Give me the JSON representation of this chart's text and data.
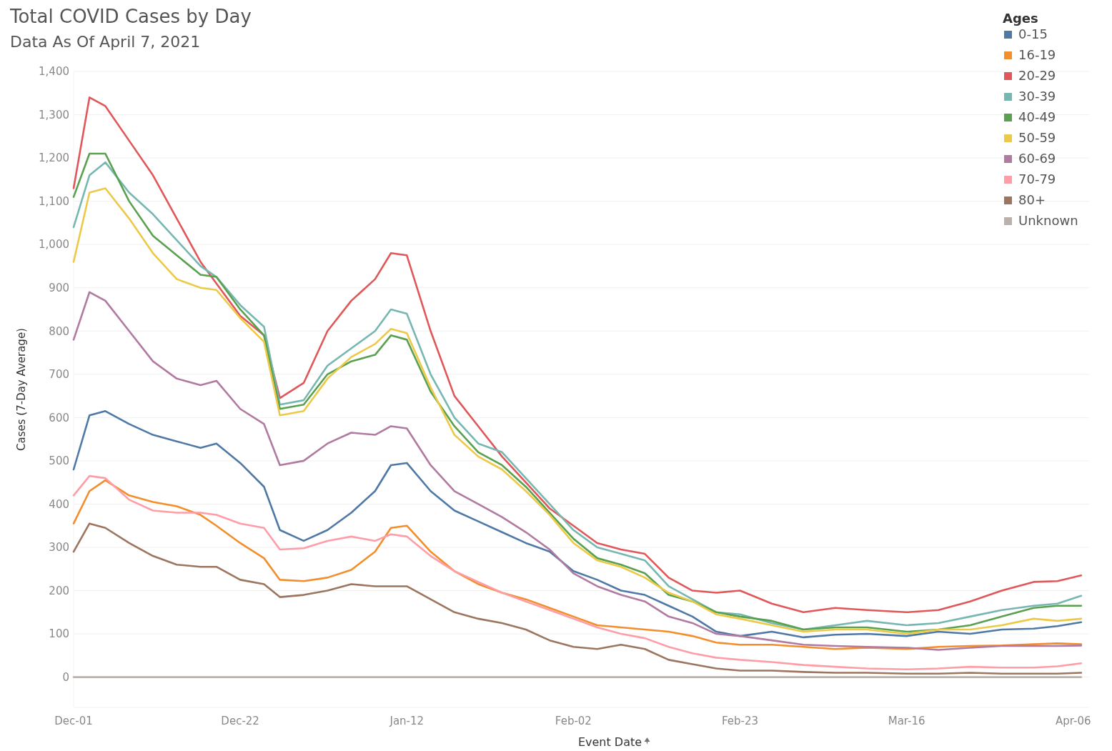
{
  "chart_data": {
    "type": "line",
    "title": "Total COVID Cases by Day",
    "subtitle": "Data As Of April 7, 2021",
    "xlabel": "Event Date",
    "ylabel": "Cases (7-Day Average)",
    "legend_title": "Ages",
    "legend": "top right",
    "grid": "y",
    "line_style": "solid",
    "marker": "none",
    "x": [
      "2020-12-01",
      "2020-12-03",
      "2020-12-05",
      "2020-12-08",
      "2020-12-11",
      "2020-12-14",
      "2020-12-17",
      "2020-12-19",
      "2020-12-22",
      "2020-12-25",
      "2020-12-27",
      "2020-12-30",
      "2021-01-02",
      "2021-01-05",
      "2021-01-08",
      "2021-01-10",
      "2021-01-12",
      "2021-01-15",
      "2021-01-18",
      "2021-01-21",
      "2021-01-24",
      "2021-01-27",
      "2021-01-30",
      "2021-02-02",
      "2021-02-05",
      "2021-02-08",
      "2021-02-11",
      "2021-02-14",
      "2021-02-17",
      "2021-02-20",
      "2021-02-23",
      "2021-02-27",
      "2021-03-03",
      "2021-03-07",
      "2021-03-11",
      "2021-03-16",
      "2021-03-20",
      "2021-03-24",
      "2021-03-28",
      "2021-04-01",
      "2021-04-04",
      "2021-04-07"
    ],
    "xlim": [
      "2020-12-01",
      "2021-04-08"
    ],
    "xticks": [
      {
        "value": "2020-12-01",
        "label": "Dec-01"
      },
      {
        "value": "2020-12-22",
        "label": "Dec-22"
      },
      {
        "value": "2021-01-12",
        "label": "Jan-12"
      },
      {
        "value": "2021-02-02",
        "label": "Feb-02"
      },
      {
        "value": "2021-02-23",
        "label": "Feb-23"
      },
      {
        "value": "2021-03-16",
        "label": "Mar-16"
      },
      {
        "value": "2021-04-06",
        "label": "Apr-06"
      }
    ],
    "ylim": [
      -70,
      1400
    ],
    "yticks": [
      0,
      100,
      200,
      300,
      400,
      500,
      600,
      700,
      800,
      900,
      {
        "value": 1000,
        "label": "1,000"
      },
      {
        "value": 1100,
        "label": "1,100"
      },
      {
        "value": 1200,
        "label": "1,200"
      },
      {
        "value": 1300,
        "label": "1,300"
      },
      {
        "value": 1400,
        "label": "1,400"
      }
    ],
    "series": [
      {
        "name": "0-15",
        "color": "#4e79a7",
        "values": [
          480,
          605,
          615,
          585,
          560,
          545,
          530,
          540,
          495,
          440,
          340,
          315,
          340,
          380,
          430,
          490,
          495,
          430,
          385,
          360,
          335,
          310,
          290,
          245,
          225,
          200,
          190,
          165,
          140,
          105,
          95,
          105,
          92,
          98,
          100,
          95,
          105,
          100,
          110,
          112,
          118,
          127
        ]
      },
      {
        "name": "16-19",
        "color": "#f28e2b",
        "values": [
          355,
          430,
          455,
          420,
          405,
          395,
          375,
          350,
          310,
          275,
          225,
          222,
          230,
          248,
          290,
          345,
          350,
          290,
          245,
          215,
          195,
          180,
          160,
          140,
          120,
          115,
          110,
          105,
          95,
          80,
          75,
          75,
          70,
          65,
          68,
          65,
          70,
          72,
          73,
          76,
          78,
          76
        ]
      },
      {
        "name": "20-29",
        "color": "#e15759",
        "values": [
          1130,
          1340,
          1320,
          1240,
          1160,
          1060,
          960,
          910,
          835,
          790,
          645,
          680,
          800,
          870,
          920,
          980,
          975,
          800,
          650,
          580,
          510,
          450,
          390,
          350,
          310,
          295,
          285,
          230,
          200,
          195,
          200,
          170,
          150,
          160,
          155,
          150,
          155,
          175,
          200,
          220,
          222,
          235
        ]
      },
      {
        "name": "30-39",
        "color": "#76b7b2",
        "values": [
          1040,
          1160,
          1190,
          1120,
          1070,
          1010,
          950,
          925,
          860,
          810,
          630,
          640,
          720,
          760,
          800,
          850,
          840,
          700,
          600,
          540,
          520,
          460,
          400,
          340,
          300,
          285,
          270,
          210,
          180,
          150,
          145,
          125,
          110,
          120,
          130,
          120,
          125,
          140,
          155,
          165,
          170,
          188
        ]
      },
      {
        "name": "40-49",
        "color": "#59a14f",
        "values": [
          1110,
          1210,
          1210,
          1100,
          1020,
          975,
          930,
          925,
          850,
          790,
          620,
          630,
          700,
          730,
          745,
          790,
          780,
          660,
          580,
          520,
          490,
          440,
          380,
          320,
          275,
          260,
          240,
          190,
          175,
          150,
          140,
          130,
          110,
          115,
          115,
          105,
          110,
          120,
          140,
          160,
          165,
          165
        ]
      },
      {
        "name": "50-59",
        "color": "#edc948",
        "values": [
          960,
          1120,
          1130,
          1060,
          980,
          920,
          900,
          895,
          830,
          775,
          605,
          615,
          690,
          740,
          770,
          805,
          795,
          670,
          560,
          510,
          480,
          430,
          375,
          310,
          270,
          255,
          230,
          195,
          175,
          145,
          135,
          120,
          105,
          110,
          110,
          100,
          110,
          110,
          120,
          135,
          130,
          135
        ]
      },
      {
        "name": "60-69",
        "color": "#b07aa1",
        "values": [
          780,
          890,
          870,
          800,
          730,
          690,
          675,
          685,
          620,
          585,
          490,
          500,
          540,
          565,
          560,
          580,
          575,
          490,
          430,
          400,
          370,
          335,
          295,
          240,
          210,
          190,
          175,
          140,
          125,
          100,
          95,
          85,
          75,
          72,
          70,
          68,
          63,
          68,
          72,
          72,
          72,
          73
        ]
      },
      {
        "name": "70-79",
        "color": "#ff9da7",
        "values": [
          420,
          465,
          460,
          410,
          385,
          380,
          380,
          375,
          355,
          345,
          295,
          298,
          315,
          325,
          315,
          330,
          325,
          280,
          245,
          220,
          195,
          175,
          155,
          135,
          115,
          100,
          90,
          70,
          55,
          45,
          40,
          35,
          28,
          24,
          20,
          18,
          20,
          24,
          22,
          22,
          25,
          32
        ]
      },
      {
        "name": "80+",
        "color": "#9c755f",
        "values": [
          290,
          355,
          345,
          310,
          280,
          260,
          255,
          255,
          225,
          215,
          185,
          190,
          200,
          215,
          210,
          210,
          210,
          180,
          150,
          135,
          125,
          110,
          85,
          70,
          65,
          75,
          65,
          40,
          30,
          20,
          15,
          15,
          12,
          10,
          10,
          8,
          8,
          10,
          8,
          8,
          8,
          10
        ]
      },
      {
        "name": "Unknown",
        "color": "#bab0ac",
        "values": [
          0,
          0,
          0,
          0,
          0,
          0,
          0,
          0,
          0,
          0,
          0,
          0,
          0,
          0,
          0,
          0,
          0,
          0,
          0,
          0,
          0,
          0,
          0,
          0,
          0,
          0,
          0,
          0,
          0,
          0,
          0,
          0,
          0,
          0,
          0,
          0,
          0,
          0,
          0,
          0,
          0,
          0
        ]
      }
    ]
  }
}
